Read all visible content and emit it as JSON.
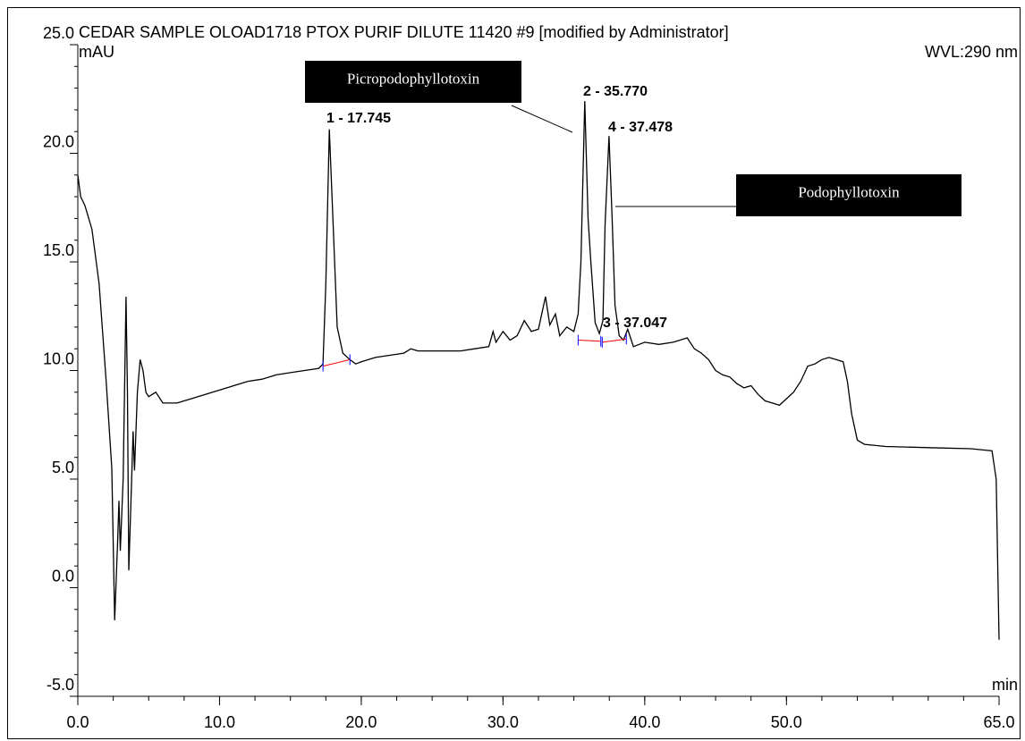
{
  "chart_data": {
    "type": "line",
    "title": "CEDAR SAMPLE OLOAD1718 PTOX PURIF DILUTE 11420 #9 [modified by Administrator]",
    "y_label": "mAU",
    "x_label": "min",
    "wavelength": "WVL:290 nm",
    "xlim": [
      0,
      65
    ],
    "ylim": [
      -5,
      25
    ],
    "xticks": [
      {
        "value": 0,
        "label": "0.0"
      },
      {
        "value": 10,
        "label": "10.0"
      },
      {
        "value": 20,
        "label": "20.0"
      },
      {
        "value": 30,
        "label": "30.0"
      },
      {
        "value": 40,
        "label": "40.0"
      },
      {
        "value": 50,
        "label": "50.0"
      },
      {
        "value": 65,
        "label": "65.0"
      }
    ],
    "yticks": [
      {
        "value": -5,
        "label": "-5.0"
      },
      {
        "value": 0,
        "label": "0.0"
      },
      {
        "value": 5,
        "label": "5.0"
      },
      {
        "value": 10,
        "label": "10.0"
      },
      {
        "value": 15,
        "label": "15.0"
      },
      {
        "value": 20,
        "label": "20.0"
      },
      {
        "value": 25,
        "label": "25.0"
      }
    ],
    "color": "#000000",
    "x": [
      0,
      0.2,
      0.5,
      1,
      1.5,
      2,
      2.4,
      2.6,
      2.8,
      2.9,
      3,
      3.2,
      3.4,
      3.5,
      3.6,
      3.8,
      3.9,
      4,
      4.2,
      4.4,
      4.6,
      4.8,
      5,
      5.5,
      6,
      7,
      8,
      9,
      10,
      11,
      12,
      13,
      14,
      15,
      16,
      17,
      17.3,
      17.5,
      17.745,
      18,
      18.3,
      18.7,
      19.2,
      19.6,
      20,
      21,
      22,
      23,
      23.5,
      24,
      25,
      26,
      27,
      28,
      29,
      29.3,
      29.5,
      30,
      30.5,
      31,
      31.5,
      32,
      32.5,
      33,
      33.3,
      33.7,
      34,
      34.5,
      35,
      35.3,
      35.5,
      35.77,
      36,
      36.2,
      36.5,
      36.8,
      37.047,
      37.2,
      37.478,
      37.7,
      37.9,
      38.2,
      38.5,
      38.8,
      39.2,
      40,
      41,
      42,
      43,
      43.5,
      44,
      44.5,
      45,
      45.5,
      46,
      46.5,
      47,
      47.5,
      48,
      48.5,
      49,
      49.5,
      50,
      50.5,
      51,
      51.5,
      52,
      52.5,
      53,
      53.5,
      54,
      54.3,
      54.6,
      55,
      55.5,
      57,
      60,
      63,
      64.5,
      64.8,
      65
    ],
    "values": [
      19,
      18,
      17.6,
      16.5,
      14,
      9.5,
      5.5,
      -1.5,
      2,
      4,
      1.7,
      5,
      13.4,
      9,
      0.8,
      5,
      7.2,
      5.4,
      9,
      10.5,
      10,
      9,
      8.8,
      9,
      8.5,
      8.5,
      8.7,
      8.9,
      9.1,
      9.3,
      9.5,
      9.6,
      9.8,
      9.9,
      10,
      10.1,
      10.3,
      14,
      21.1,
      17,
      12,
      10.8,
      10.5,
      10.3,
      10.4,
      10.6,
      10.7,
      10.8,
      11,
      10.9,
      10.9,
      10.9,
      10.9,
      11,
      11.1,
      11.8,
      11.3,
      11.8,
      11.4,
      11.6,
      12.3,
      11.8,
      11.9,
      13.4,
      12.1,
      12.6,
      11.6,
      12,
      11.8,
      12.6,
      15,
      22.4,
      17,
      15,
      12.2,
      11.7,
      12.3,
      16.7,
      20.8,
      17,
      13,
      11.6,
      11.4,
      11.9,
      11.1,
      11.3,
      11.2,
      11.3,
      11.5,
      11,
      10.8,
      10.5,
      10,
      9.8,
      9.7,
      9.4,
      9.2,
      9.3,
      8.9,
      8.6,
      8.5,
      8.4,
      8.7,
      9,
      9.5,
      10.2,
      10.3,
      10.5,
      10.6,
      10.5,
      10.4,
      9.5,
      8,
      6.8,
      6.6,
      6.5,
      6.45,
      6.4,
      6.3,
      5,
      -2.4
    ],
    "baselines": [
      {
        "x": [
          17.3,
          19.2
        ],
        "y": [
          10.2,
          10.5
        ]
      },
      {
        "x": [
          35.3,
          36.9
        ],
        "y": [
          11.4,
          11.35
        ]
      },
      {
        "x": [
          37.0,
          38.7
        ],
        "y": [
          11.3,
          11.45
        ]
      }
    ],
    "baseline_color": "#ff0000",
    "peaks": [
      "1 - 17.745",
      "2 - 35.770",
      "3 - 37.047",
      "4 - 37.478"
    ],
    "annotations": [
      "Picropodophyllotoxin",
      "Podophyllotoxin"
    ]
  }
}
